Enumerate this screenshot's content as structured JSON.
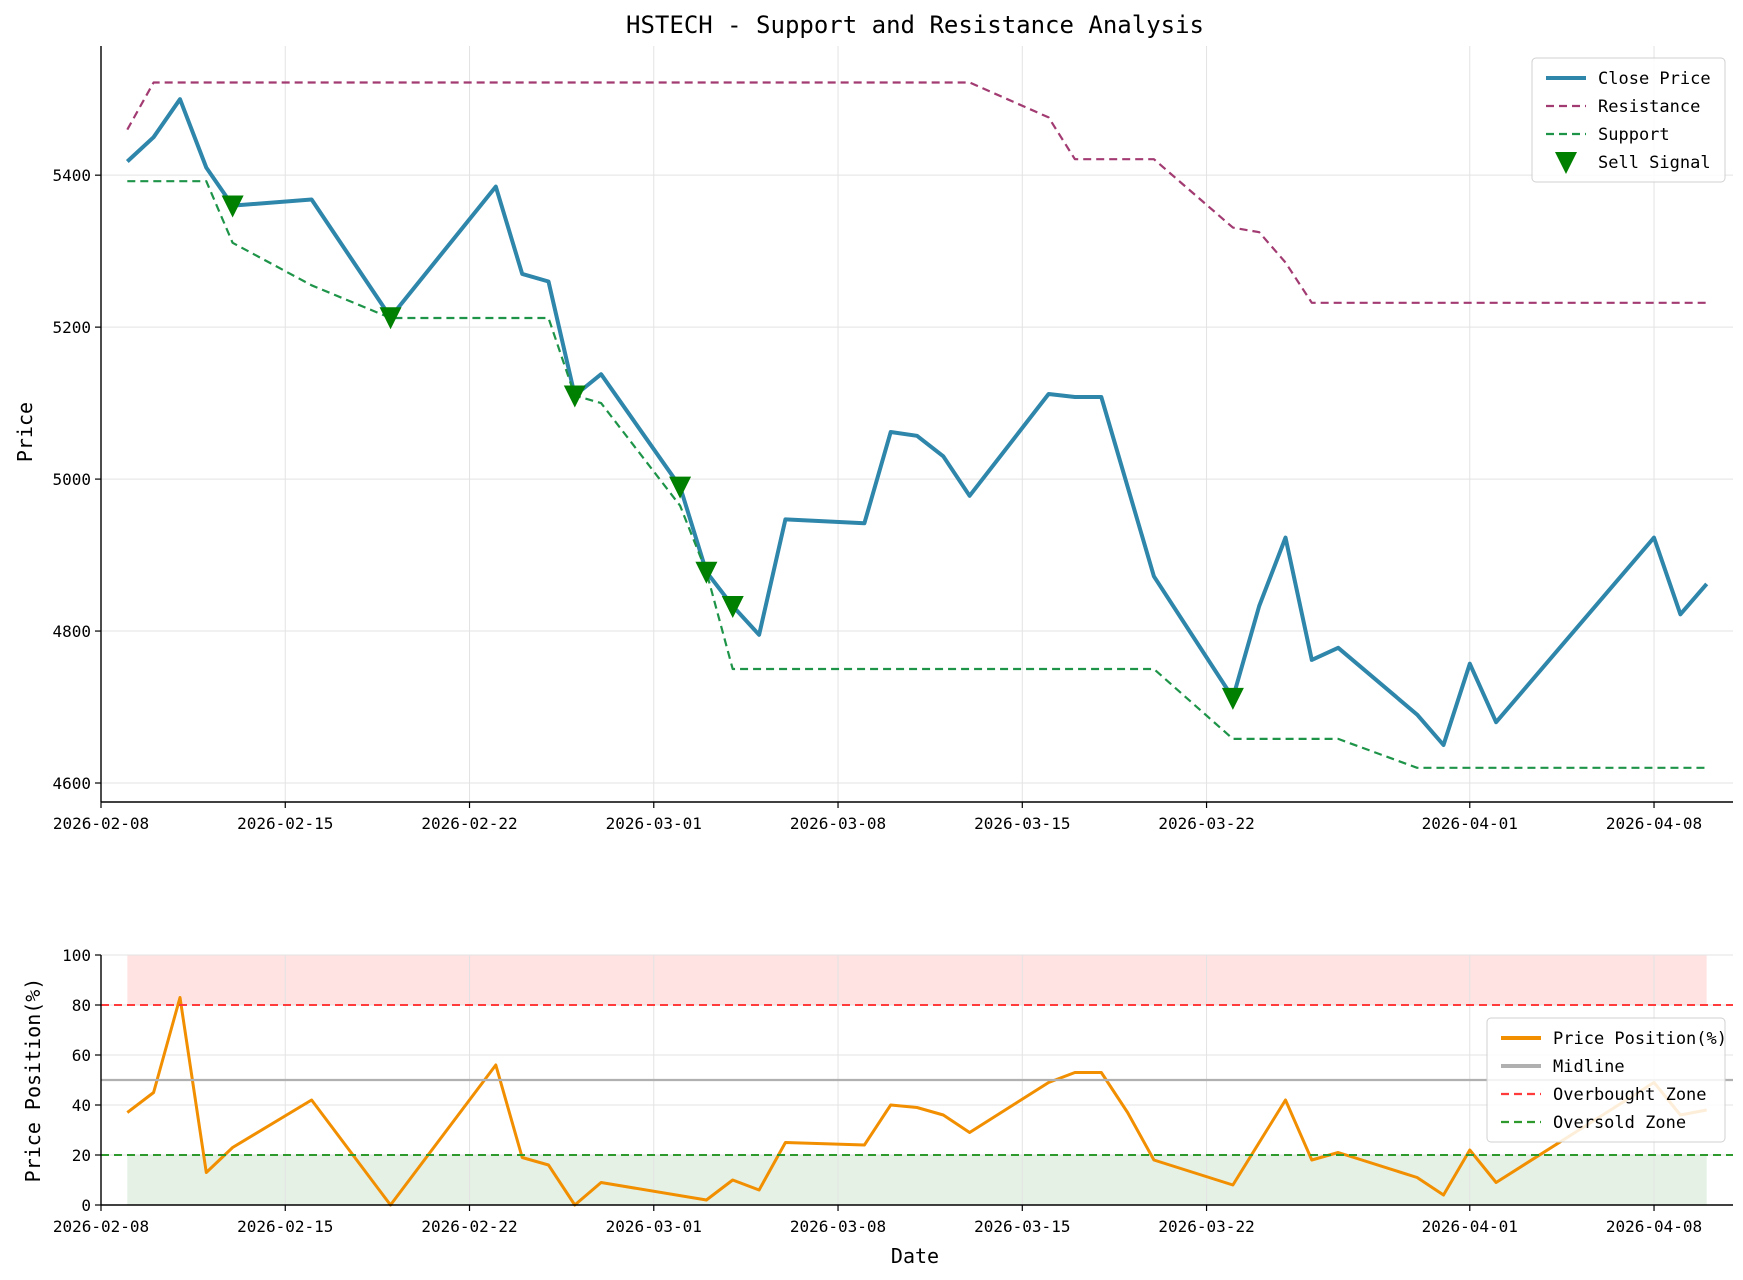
{
  "chart_data": [
    {
      "type": "line",
      "title": "HSTECH - Support and Resistance Analysis",
      "xlabel": "",
      "ylabel": "Price",
      "xlim": [
        "2026-02-08",
        "2026-04-11"
      ],
      "ylim": [
        4575,
        5570
      ],
      "x_ticks": [
        "2026-02-08",
        "2026-02-15",
        "2026-02-22",
        "2026-03-01",
        "2026-03-08",
        "2026-03-15",
        "2026-03-22",
        "2026-04-01",
        "2026-04-08"
      ],
      "y_ticks": [
        4600,
        4800,
        5000,
        5200,
        5400
      ],
      "grid": true,
      "legend_position": "top-right",
      "series": [
        {
          "name": "Close Price",
          "color": "#2e86ab",
          "style": "solid",
          "points": [
            [
              "2026-02-09",
              5418
            ],
            [
              "2026-02-10",
              5450
            ],
            [
              "2026-02-11",
              5500
            ],
            [
              "2026-02-12",
              5410
            ],
            [
              "2026-02-13",
              5360
            ],
            [
              "2026-02-16",
              5368
            ],
            [
              "2026-02-19",
              5213
            ],
            [
              "2026-02-23",
              5385
            ],
            [
              "2026-02-24",
              5270
            ],
            [
              "2026-02-25",
              5260
            ],
            [
              "2026-02-26",
              5110
            ],
            [
              "2026-02-27",
              5138
            ],
            [
              "2026-03-02",
              4990
            ],
            [
              "2026-03-03",
              4878
            ],
            [
              "2026-03-04",
              4833
            ],
            [
              "2026-03-05",
              4795
            ],
            [
              "2026-03-06",
              4947
            ],
            [
              "2026-03-09",
              4942
            ],
            [
              "2026-03-10",
              5062
            ],
            [
              "2026-03-11",
              5057
            ],
            [
              "2026-03-12",
              5030
            ],
            [
              "2026-03-13",
              4978
            ],
            [
              "2026-03-16",
              5112
            ],
            [
              "2026-03-17",
              5108
            ],
            [
              "2026-03-18",
              5108
            ],
            [
              "2026-03-20",
              4872
            ],
            [
              "2026-03-23",
              4712
            ],
            [
              "2026-03-24",
              4833
            ],
            [
              "2026-03-25",
              4923
            ],
            [
              "2026-03-26",
              4762
            ],
            [
              "2026-03-27",
              4778
            ],
            [
              "2026-03-30",
              4690
            ],
            [
              "2026-03-31",
              4650
            ],
            [
              "2026-04-01",
              4757
            ],
            [
              "2026-04-02",
              4680
            ],
            [
              "2026-04-08",
              4923
            ],
            [
              "2026-04-09",
              4822
            ],
            [
              "2026-04-10",
              4862
            ]
          ]
        },
        {
          "name": "Resistance",
          "color": "#a23b72",
          "style": "dashed",
          "points": [
            [
              "2026-02-09",
              5460
            ],
            [
              "2026-02-10",
              5522
            ],
            [
              "2026-03-13",
              5522
            ],
            [
              "2026-03-16",
              5476
            ],
            [
              "2026-03-17",
              5421
            ],
            [
              "2026-03-20",
              5421
            ],
            [
              "2026-03-23",
              5331
            ],
            [
              "2026-03-24",
              5325
            ],
            [
              "2026-03-25",
              5285
            ],
            [
              "2026-03-26",
              5232
            ],
            [
              "2026-04-10",
              5232
            ]
          ]
        },
        {
          "name": "Support",
          "color": "#1e9449",
          "style": "dashed",
          "points": [
            [
              "2026-02-09",
              5392
            ],
            [
              "2026-02-12",
              5392
            ],
            [
              "2026-02-13",
              5311
            ],
            [
              "2026-02-16",
              5255
            ],
            [
              "2026-02-19",
              5212
            ],
            [
              "2026-02-25",
              5212
            ],
            [
              "2026-02-26",
              5110
            ],
            [
              "2026-02-27",
              5100
            ],
            [
              "2026-03-02",
              4965
            ],
            [
              "2026-03-03",
              4878
            ],
            [
              "2026-03-04",
              4750
            ],
            [
              "2026-03-20",
              4750
            ],
            [
              "2026-03-23",
              4658
            ],
            [
              "2026-03-27",
              4658
            ],
            [
              "2026-03-30",
              4620
            ],
            [
              "2026-04-10",
              4620
            ]
          ]
        },
        {
          "name": "Sell Signal",
          "color": "#008000",
          "style": "marker",
          "marker": "triangle-down",
          "points": [
            [
              "2026-02-13",
              5360
            ],
            [
              "2026-02-19",
              5213
            ],
            [
              "2026-02-26",
              5110
            ],
            [
              "2026-03-02",
              4990
            ],
            [
              "2026-03-03",
              4878
            ],
            [
              "2026-03-04",
              4833
            ],
            [
              "2026-03-23",
              4712
            ]
          ]
        }
      ]
    },
    {
      "type": "line",
      "title": "",
      "xlabel": "Date",
      "ylabel": "Price Position(%)",
      "xlim": [
        "2026-02-08",
        "2026-04-11"
      ],
      "ylim": [
        0,
        100
      ],
      "x_ticks": [
        "2026-02-08",
        "2026-02-15",
        "2026-02-22",
        "2026-03-01",
        "2026-03-08",
        "2026-03-15",
        "2026-03-22",
        "2026-04-01",
        "2026-04-08"
      ],
      "y_ticks": [
        0,
        20,
        40,
        60,
        80,
        100
      ],
      "grid": true,
      "legend_position": "right",
      "bands": [
        {
          "from": 80,
          "to": 100,
          "color": "#ffcccc",
          "span": [
            "2026-02-09",
            "2026-04-10"
          ]
        },
        {
          "from": 0,
          "to": 20,
          "color": "#cfe6cf",
          "span": [
            "2026-02-09",
            "2026-04-10"
          ]
        }
      ],
      "series": [
        {
          "name": "Price Position(%)",
          "color": "#f18f01",
          "style": "solid",
          "points": [
            [
              "2026-02-09",
              37
            ],
            [
              "2026-02-10",
              45
            ],
            [
              "2026-02-11",
              83
            ],
            [
              "2026-02-12",
              13
            ],
            [
              "2026-02-13",
              23
            ],
            [
              "2026-02-16",
              42
            ],
            [
              "2026-02-19",
              0
            ],
            [
              "2026-02-23",
              56
            ],
            [
              "2026-02-24",
              19
            ],
            [
              "2026-02-25",
              16
            ],
            [
              "2026-02-26",
              0
            ],
            [
              "2026-02-27",
              9
            ],
            [
              "2026-03-03",
              2
            ],
            [
              "2026-03-04",
              10
            ],
            [
              "2026-03-05",
              6
            ],
            [
              "2026-03-06",
              25
            ],
            [
              "2026-03-09",
              24
            ],
            [
              "2026-03-10",
              40
            ],
            [
              "2026-03-11",
              39
            ],
            [
              "2026-03-12",
              36
            ],
            [
              "2026-03-13",
              29
            ],
            [
              "2026-03-16",
              49
            ],
            [
              "2026-03-17",
              53
            ],
            [
              "2026-03-18",
              53
            ],
            [
              "2026-03-19",
              37
            ],
            [
              "2026-03-20",
              18
            ],
            [
              "2026-03-23",
              8
            ],
            [
              "2026-03-25",
              42
            ],
            [
              "2026-03-26",
              18
            ],
            [
              "2026-03-27",
              21
            ],
            [
              "2026-03-30",
              11
            ],
            [
              "2026-03-31",
              4
            ],
            [
              "2026-04-01",
              22
            ],
            [
              "2026-04-02",
              9
            ],
            [
              "2026-04-08",
              49
            ],
            [
              "2026-04-09",
              36
            ],
            [
              "2026-04-10",
              38
            ]
          ]
        },
        {
          "name": "Midline",
          "color": "#b0b0b0",
          "style": "solid",
          "hline": 50
        },
        {
          "name": "Overbought Zone",
          "color": "#ff3b3b",
          "style": "dashed",
          "hline": 80
        },
        {
          "name": "Oversold Zone",
          "color": "#2e9a2e",
          "style": "dashed",
          "hline": 20
        }
      ]
    }
  ]
}
